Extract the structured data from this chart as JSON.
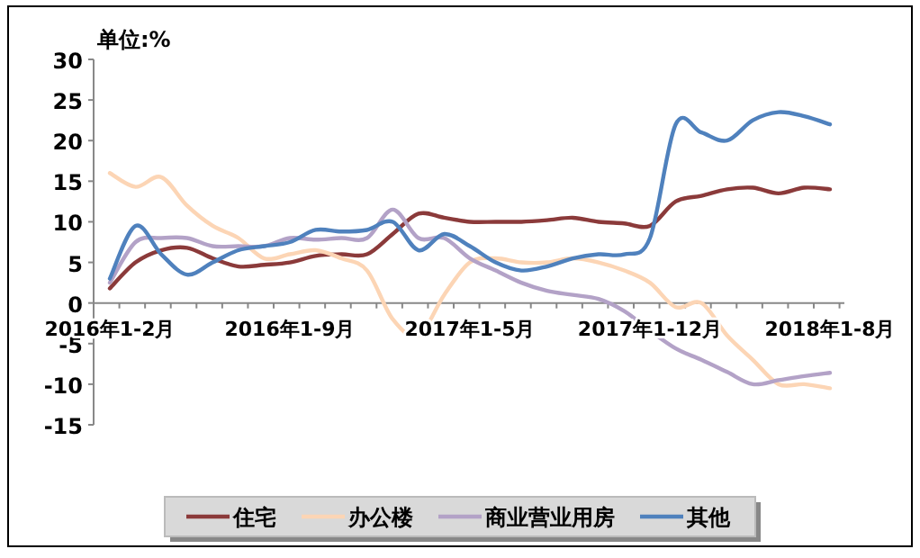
{
  "chart_data": {
    "type": "line",
    "ylabel": "单位:%",
    "categories": [
      "2016年1-2月",
      null,
      null,
      null,
      null,
      null,
      null,
      "2016年1-9月",
      null,
      null,
      null,
      null,
      null,
      null,
      "2017年1-5月",
      null,
      null,
      null,
      null,
      null,
      null,
      "2017年1-12月",
      null,
      null,
      null,
      null,
      null,
      null,
      "2018年1-8月"
    ],
    "ylim": [
      -15,
      30
    ],
    "yticks": [
      -15,
      -10,
      -5,
      0,
      5,
      10,
      15,
      20,
      25,
      30
    ],
    "grid": false,
    "legend": "bottom",
    "series": [
      {
        "name": "住宅",
        "color": "#8b3a3a",
        "values": [
          1.8,
          5,
          6.5,
          6.8,
          5.5,
          4.5,
          4.7,
          5,
          5.8,
          6,
          6,
          8.5,
          11,
          10.5,
          10,
          10,
          10,
          10.2,
          10.5,
          10,
          9.8,
          9.5,
          12.5,
          13.2,
          14,
          14.2,
          13.5,
          14.2,
          14
        ]
      },
      {
        "name": "办公楼",
        "color": "#fcd5b5",
        "values": [
          16,
          14.3,
          15.5,
          12,
          9.5,
          8,
          5.5,
          6,
          6.5,
          5.5,
          4,
          -2,
          -4,
          1,
          5,
          5.5,
          5,
          5,
          5.5,
          5,
          4,
          2.5,
          -0.5,
          0,
          -4,
          -7,
          -10,
          -10,
          -10.5
        ]
      },
      {
        "name": "商业营业用房",
        "color": "#b3a2c7",
        "values": [
          2.5,
          7.5,
          8,
          8,
          7,
          7,
          7,
          8,
          7.8,
          8,
          8,
          11.5,
          8,
          8,
          5.5,
          4,
          2.5,
          1.5,
          1,
          0.5,
          -1,
          -3.4,
          -5.6,
          -7,
          -8.5,
          -10,
          -9.5,
          -9,
          -8.6
        ]
      },
      {
        "name": "其他",
        "color": "#4f81bd",
        "values": [
          3,
          9.5,
          6,
          3.5,
          5,
          6.5,
          7,
          7.5,
          9,
          8.8,
          9,
          10,
          6.5,
          8.5,
          7,
          5,
          4,
          4.5,
          5.5,
          6,
          6,
          8,
          22,
          21,
          20,
          22.5,
          23.5,
          23,
          22
        ]
      }
    ]
  }
}
